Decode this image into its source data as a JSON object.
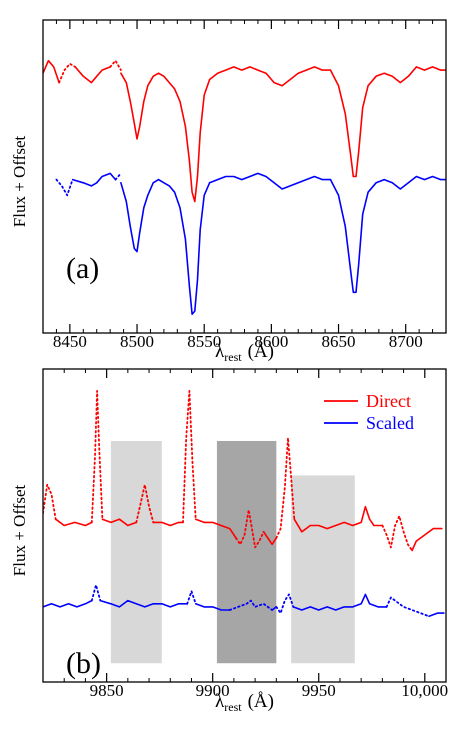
{
  "chart_data": [
    {
      "type": "line",
      "panel_label": "(a)",
      "ylabel": "Flux + Offset",
      "xlabel_main": "λ",
      "xlabel_sub": "rest",
      "xlabel_unit": "(Å)",
      "xlim": [
        8430,
        8730
      ],
      "ylim": [
        0,
        1
      ],
      "xticks": [
        8450,
        8500,
        8550,
        8600,
        8650,
        8700
      ],
      "xtick_labels": [
        "8450",
        "8500",
        "8550",
        "8600",
        "8650",
        "8700"
      ],
      "series": [
        {
          "color": "#ff0000",
          "segments": [
            {
              "style": "solid",
              "x": [
                8430,
                8434,
                8438,
                8442
              ],
              "y": [
                0.83,
                0.87,
                0.85,
                0.8
              ]
            },
            {
              "style": "dotted",
              "x": [
                8442,
                8446,
                8450,
                8454
              ],
              "y": [
                0.8,
                0.84,
                0.86,
                0.85
              ]
            },
            {
              "style": "solid",
              "x": [
                8454,
                8460,
                8466,
                8470,
                8474,
                8480
              ],
              "y": [
                0.85,
                0.82,
                0.8,
                0.82,
                0.84,
                0.85
              ]
            },
            {
              "style": "dotted",
              "x": [
                8480,
                8484,
                8488
              ],
              "y": [
                0.85,
                0.87,
                0.84
              ]
            },
            {
              "style": "solid",
              "x": [
                8488,
                8492,
                8495,
                8498,
                8500,
                8502,
                8505,
                8508,
                8512,
                8516,
                8520,
                8524,
                8528,
                8532,
                8536,
                8539,
                8541,
                8543,
                8545,
                8547,
                8550,
                8554,
                8560,
                8566,
                8572,
                8578,
                8584,
                8590,
                8596,
                8602,
                8608,
                8614,
                8620,
                8626,
                8632,
                8638,
                8644,
                8650,
                8655,
                8659,
                8661,
                8663,
                8665,
                8668,
                8672,
                8678,
                8684,
                8690,
                8696,
                8702,
                8708,
                8714,
                8720,
                8726,
                8730
              ],
              "y": [
                0.83,
                0.8,
                0.74,
                0.67,
                0.62,
                0.66,
                0.74,
                0.79,
                0.82,
                0.83,
                0.82,
                0.8,
                0.78,
                0.74,
                0.66,
                0.55,
                0.45,
                0.42,
                0.5,
                0.64,
                0.76,
                0.81,
                0.83,
                0.84,
                0.85,
                0.84,
                0.85,
                0.84,
                0.83,
                0.8,
                0.79,
                0.81,
                0.83,
                0.84,
                0.85,
                0.84,
                0.84,
                0.79,
                0.7,
                0.57,
                0.5,
                0.5,
                0.58,
                0.72,
                0.79,
                0.82,
                0.83,
                0.82,
                0.8,
                0.82,
                0.85,
                0.84,
                0.85,
                0.84,
                0.84
              ]
            }
          ]
        },
        {
          "color": "#0000ff",
          "segments": [
            {
              "style": "dotted",
              "x": [
                8440,
                8444,
                8448,
                8452
              ],
              "y": [
                0.49,
                0.47,
                0.44,
                0.49
              ]
            },
            {
              "style": "solid",
              "x": [
                8452,
                8460,
                8466,
                8470,
                8474,
                8480,
                8484
              ],
              "y": [
                0.49,
                0.48,
                0.47,
                0.48,
                0.5,
                0.51,
                0.49
              ]
            },
            {
              "style": "dotted",
              "x": [
                8484,
                8488
              ],
              "y": [
                0.49,
                0.51
              ]
            },
            {
              "style": "solid",
              "x": [
                8488,
                8492,
                8495,
                8498,
                8500,
                8502,
                8505,
                8508,
                8512,
                8516,
                8520,
                8524,
                8528,
                8532,
                8536,
                8539,
                8541,
                8543,
                8545,
                8547,
                8550,
                8554,
                8560,
                8566,
                8572,
                8578,
                8584,
                8590,
                8596,
                8602,
                8608,
                8614,
                8620,
                8626,
                8632,
                8638,
                8644,
                8650,
                8655,
                8659,
                8661,
                8663,
                8665,
                8668,
                8672,
                8678,
                8684,
                8690,
                8696,
                8702,
                8708,
                8714,
                8720,
                8726,
                8730
              ],
              "y": [
                0.48,
                0.42,
                0.34,
                0.27,
                0.26,
                0.32,
                0.4,
                0.44,
                0.48,
                0.49,
                0.48,
                0.47,
                0.45,
                0.4,
                0.3,
                0.15,
                0.06,
                0.07,
                0.17,
                0.33,
                0.44,
                0.48,
                0.49,
                0.5,
                0.5,
                0.49,
                0.5,
                0.51,
                0.5,
                0.48,
                0.46,
                0.47,
                0.48,
                0.49,
                0.5,
                0.49,
                0.49,
                0.44,
                0.34,
                0.2,
                0.13,
                0.13,
                0.22,
                0.38,
                0.45,
                0.48,
                0.49,
                0.48,
                0.46,
                0.48,
                0.5,
                0.49,
                0.5,
                0.49,
                0.49
              ]
            }
          ]
        }
      ]
    },
    {
      "type": "line",
      "panel_label": "(b)",
      "ylabel": "Flux + Offset",
      "xlabel_main": "λ",
      "xlabel_sub": "rest",
      "xlabel_unit": "(Å)",
      "xlim": [
        9820,
        10010
      ],
      "ylim": [
        0,
        1
      ],
      "xticks": [
        9850,
        9900,
        9950,
        10000
      ],
      "xtick_labels": [
        "9850",
        "9900",
        "9950",
        "10,000"
      ],
      "shaded_regions": [
        {
          "x0": 9852,
          "x1": 9876,
          "y0": 0.06,
          "y1": 0.77,
          "color": "#d8d8d8"
        },
        {
          "x0": 9902,
          "x1": 9930,
          "y0": 0.06,
          "y1": 0.77,
          "color": "#a6a6a6"
        },
        {
          "x0": 9937,
          "x1": 9967,
          "y0": 0.06,
          "y1": 0.66,
          "color": "#d8d8d8"
        }
      ],
      "legend": {
        "position": "top-right",
        "entries": [
          {
            "label": "Direct",
            "color": "#ff0000"
          },
          {
            "label": "Scaled",
            "color": "#0000ff"
          }
        ]
      },
      "series": [
        {
          "name": "Direct",
          "color": "#ff0000",
          "segments": [
            {
              "style": "dotted",
              "x": [
                9820,
                9822,
                9824,
                9826
              ],
              "y": [
                0.54,
                0.63,
                0.6,
                0.52
              ]
            },
            {
              "style": "solid",
              "x": [
                9826,
                9830,
                9835,
                9840,
                9843
              ],
              "y": [
                0.52,
                0.5,
                0.51,
                0.5,
                0.51
              ]
            },
            {
              "style": "dotted",
              "x": [
                9843,
                9844.5,
                9845.5,
                9846.5,
                9848
              ],
              "y": [
                0.51,
                0.72,
                0.93,
                0.75,
                0.52
              ]
            },
            {
              "style": "solid",
              "x": [
                9848,
                9852,
                9856,
                9860,
                9864
              ],
              "y": [
                0.52,
                0.51,
                0.52,
                0.5,
                0.51
              ]
            },
            {
              "style": "dotted",
              "x": [
                9864,
                9866,
                9868,
                9870,
                9872
              ],
              "y": [
                0.51,
                0.57,
                0.63,
                0.56,
                0.51
              ]
            },
            {
              "style": "solid",
              "x": [
                9872,
                9876,
                9880,
                9884,
                9886
              ],
              "y": [
                0.51,
                0.51,
                0.5,
                0.51,
                0.51
              ]
            },
            {
              "style": "dotted",
              "x": [
                9886,
                9887.5,
                9889,
                9890.5,
                9892
              ],
              "y": [
                0.51,
                0.78,
                0.93,
                0.7,
                0.52
              ]
            },
            {
              "style": "solid",
              "x": [
                9892,
                9896,
                9900,
                9904,
                9908,
                9911
              ],
              "y": [
                0.52,
                0.51,
                0.51,
                0.5,
                0.49,
                0.46
              ]
            },
            {
              "style": "dotted",
              "x": [
                9911,
                9913,
                9915,
                9917,
                9918,
                9920,
                9922,
                9924
              ],
              "y": [
                0.46,
                0.44,
                0.47,
                0.55,
                0.51,
                0.43,
                0.45,
                0.48
              ]
            },
            {
              "style": "solid",
              "x": [
                9924,
                9926,
                9928,
                9930
              ],
              "y": [
                0.48,
                0.46,
                0.44,
                0.46
              ]
            },
            {
              "style": "dotted",
              "x": [
                9930,
                9932,
                9934,
                9935.5,
                9937,
                9938.5
              ],
              "y": [
                0.46,
                0.49,
                0.62,
                0.78,
                0.65,
                0.52
              ]
            },
            {
              "style": "solid",
              "x": [
                9938.5,
                9942,
                9946,
                9950,
                9954,
                9958,
                9962,
                9966,
                9970,
                9972,
                9974,
                9976,
                9980
              ],
              "y": [
                0.52,
                0.48,
                0.5,
                0.5,
                0.49,
                0.5,
                0.51,
                0.5,
                0.51,
                0.56,
                0.52,
                0.5,
                0.5
              ]
            },
            {
              "style": "dotted",
              "x": [
                9980,
                9982,
                9984,
                9986,
                9988,
                9990,
                9992,
                9994
              ],
              "y": [
                0.5,
                0.47,
                0.43,
                0.5,
                0.53,
                0.48,
                0.44,
                0.42
              ]
            },
            {
              "style": "solid",
              "x": [
                9994,
                9996,
                10000,
                10004,
                10008
              ],
              "y": [
                0.42,
                0.45,
                0.47,
                0.49,
                0.49
              ]
            }
          ]
        },
        {
          "name": "Scaled",
          "color": "#0000ff",
          "segments": [
            {
              "style": "solid",
              "x": [
                9820,
                9824,
                9828,
                9832,
                9836,
                9840,
                9843
              ],
              "y": [
                0.24,
                0.25,
                0.24,
                0.25,
                0.24,
                0.25,
                0.26
              ]
            },
            {
              "style": "dotted",
              "x": [
                9843,
                9845,
                9847
              ],
              "y": [
                0.26,
                0.31,
                0.26
              ]
            },
            {
              "style": "solid",
              "x": [
                9847,
                9852,
                9856,
                9860,
                9864,
                9868,
                9872,
                9876,
                9880,
                9884,
                9888
              ],
              "y": [
                0.26,
                0.25,
                0.24,
                0.26,
                0.25,
                0.24,
                0.25,
                0.25,
                0.24,
                0.25,
                0.25
              ]
            },
            {
              "style": "dotted",
              "x": [
                9888,
                9890,
                9892
              ],
              "y": [
                0.25,
                0.29,
                0.25
              ]
            },
            {
              "style": "solid",
              "x": [
                9892,
                9896,
                9900,
                9904,
                9908
              ],
              "y": [
                0.25,
                0.24,
                0.24,
                0.23,
                0.23
              ]
            },
            {
              "style": "dotted",
              "x": [
                9908,
                9912,
                9916,
                9918,
                9920,
                9924,
                9928
              ],
              "y": [
                0.23,
                0.24,
                0.25,
                0.26,
                0.24,
                0.25,
                0.23
              ]
            },
            {
              "style": "solid",
              "x": [
                9928,
                9930
              ],
              "y": [
                0.23,
                0.24
              ]
            },
            {
              "style": "dotted",
              "x": [
                9930,
                9932,
                9934,
                9936,
                9938
              ],
              "y": [
                0.24,
                0.22,
                0.26,
                0.28,
                0.24
              ]
            },
            {
              "style": "solid",
              "x": [
                9938,
                9942,
                9946,
                9950,
                9954,
                9958,
                9962,
                9966,
                9970,
                9972,
                9974,
                9978,
                9982
              ],
              "y": [
                0.24,
                0.23,
                0.24,
                0.23,
                0.24,
                0.23,
                0.24,
                0.24,
                0.25,
                0.28,
                0.25,
                0.24,
                0.24
              ]
            },
            {
              "style": "dotted",
              "x": [
                9982,
                9984,
                9986,
                9990,
                9994,
                9998,
                10002
              ],
              "y": [
                0.24,
                0.27,
                0.26,
                0.24,
                0.23,
                0.22,
                0.21
              ]
            },
            {
              "style": "solid",
              "x": [
                10002,
                10006,
                10009
              ],
              "y": [
                0.21,
                0.22,
                0.22
              ]
            }
          ]
        }
      ]
    }
  ]
}
